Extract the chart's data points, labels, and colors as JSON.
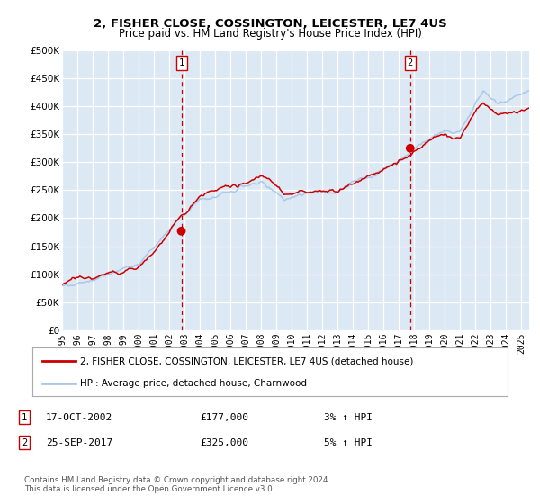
{
  "title": "2, FISHER CLOSE, COSSINGTON, LEICESTER, LE7 4US",
  "subtitle": "Price paid vs. HM Land Registry's House Price Index (HPI)",
  "ylim": [
    0,
    500000
  ],
  "yticks": [
    0,
    50000,
    100000,
    150000,
    200000,
    250000,
    300000,
    350000,
    400000,
    450000,
    500000
  ],
  "ytick_labels": [
    "£0",
    "£50K",
    "£100K",
    "£150K",
    "£200K",
    "£250K",
    "£300K",
    "£350K",
    "£400K",
    "£450K",
    "£500K"
  ],
  "bg_color": "#dce9f5",
  "grid_color": "#ffffff",
  "line1_color": "#cc0000",
  "line2_color": "#aac8e8",
  "marker_color": "#cc0000",
  "vline_color": "#cc0000",
  "transaction1": {
    "date_str": "17-OCT-2002",
    "year": 2002.79,
    "price": 177000,
    "label": "1",
    "hpi_pct": "3% ↑ HPI"
  },
  "transaction2": {
    "date_str": "25-SEP-2017",
    "year": 2017.73,
    "price": 325000,
    "label": "2",
    "hpi_pct": "5% ↑ HPI"
  },
  "legend1": "2, FISHER CLOSE, COSSINGTON, LEICESTER, LE7 4US (detached house)",
  "legend2": "HPI: Average price, detached house, Charnwood",
  "footnote1": "Contains HM Land Registry data © Crown copyright and database right 2024.",
  "footnote2": "This data is licensed under the Open Government Licence v3.0.",
  "start_year": 1995.0,
  "end_year": 2025.5
}
